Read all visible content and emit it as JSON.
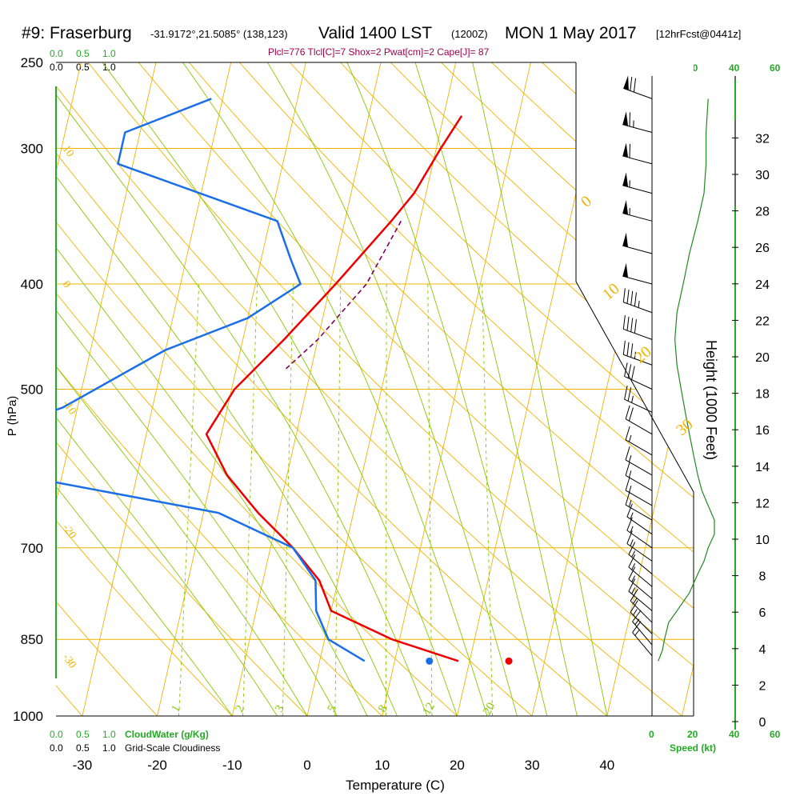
{
  "header": {
    "station": "#9: Fraserburg",
    "coords": "-31.9172°,21.5085° (138,123)",
    "valid": "Valid 1400 LST",
    "zulu": "(1200Z)",
    "date": "MON 1 May 2017",
    "fcst": "[12hrFcst@0441z]"
  },
  "indices": "Plcl=776 Tlcl[C]=7 Shox=2 Pwat[cm]=2 Cape[J]= 87",
  "colors": {
    "isotherm": "#f0b400",
    "dry_adiabat": "#f0b400",
    "moist_adiabat": "#88c800",
    "mixing_ratio": "#88c800",
    "temperature": "#ee0000",
    "dewpoint": "#1a6fe8",
    "parcel": "#800060",
    "green_axis": "#22aa22",
    "wind_speed": "#228822"
  },
  "cloud_scale": {
    "green_top": [
      "0.0",
      "0.5",
      "1.0"
    ],
    "black_top": [
      "0.0",
      "0.5",
      "1.0"
    ],
    "green_bottom": [
      "0.0",
      "0.5",
      "1.0"
    ],
    "green_bottom_label": "CloudWater (g/Kg)",
    "black_bottom": [
      "0.0",
      "0.5",
      "1.0"
    ],
    "black_bottom_label": "Grid-Scale Cloudiness"
  },
  "speed_axis": {
    "top_labels": [
      "0",
      "20",
      "40",
      "60"
    ],
    "bottom_labels": [
      "0",
      "20",
      "40",
      "60"
    ],
    "label": "Speed (kt)"
  },
  "chart_data": {
    "type": "line",
    "title": "#9: Fraserburg",
    "xlabel": "Temperature (C)",
    "ylabel": "P (hPa)",
    "y2label": "Height (1000 Feet)",
    "xlim": [
      -34,
      48
    ],
    "ylim": [
      1000,
      250
    ],
    "x_ticks": [
      -30,
      -20,
      -10,
      0,
      10,
      20,
      30,
      40
    ],
    "y_ticks": [
      250,
      300,
      400,
      500,
      700,
      850,
      1000
    ],
    "height_ticks": [
      0,
      2,
      4,
      6,
      8,
      10,
      12,
      14,
      16,
      18,
      20,
      22,
      24,
      26,
      28,
      30,
      32
    ],
    "isotherm_labels": [
      {
        "value": "0",
        "p": 400
      },
      {
        "value": "10",
        "p": 300
      },
      {
        "value": "-10",
        "p": 515
      },
      {
        "value": "-20",
        "p": 670
      },
      {
        "value": "-30",
        "p": 882
      }
    ],
    "dry_adiabat_labels": [
      {
        "value": "0",
        "p": 345
      },
      {
        "value": "10",
        "p": 420
      },
      {
        "value": "20",
        "p": 480
      },
      {
        "value": "30",
        "p": 560
      }
    ],
    "mixing_ratio_labels": [
      "1",
      "2",
      "3",
      "5",
      "8",
      "12",
      "20"
    ],
    "series": [
      {
        "name": "temperature",
        "points": [
          {
            "p": 280,
            "t": 2.4
          },
          {
            "p": 300,
            "t": 0.6
          },
          {
            "p": 330,
            "t": -1.6
          },
          {
            "p": 350,
            "t": -3.8
          },
          {
            "p": 400,
            "t": -9.3
          },
          {
            "p": 450,
            "t": -14.5
          },
          {
            "p": 500,
            "t": -19.6
          },
          {
            "p": 550,
            "t": -22.0
          },
          {
            "p": 600,
            "t": -18.0
          },
          {
            "p": 650,
            "t": -12.7
          },
          {
            "p": 700,
            "t": -7.0
          },
          {
            "p": 750,
            "t": -2.5
          },
          {
            "p": 800,
            "t": 0.0
          },
          {
            "p": 850,
            "t": 9.0
          },
          {
            "p": 890,
            "t": 18.5
          }
        ]
      },
      {
        "name": "dewpoint",
        "points": [
          {
            "p": 270,
            "t": -31.5
          },
          {
            "p": 290,
            "t": -42.0
          },
          {
            "p": 310,
            "t": -42.0
          },
          {
            "p": 350,
            "t": -19.0
          },
          {
            "p": 380,
            "t": -16.0
          },
          {
            "p": 400,
            "t": -14.0
          },
          {
            "p": 430,
            "t": -20.0
          },
          {
            "p": 460,
            "t": -30.0
          },
          {
            "p": 520,
            "t": -42.0
          },
          {
            "p": 560,
            "t": -55.0
          },
          {
            "p": 600,
            "t": -46.0
          },
          {
            "p": 650,
            "t": -18.0
          },
          {
            "p": 700,
            "t": -7.0
          },
          {
            "p": 750,
            "t": -3.0
          },
          {
            "p": 800,
            "t": -2.0
          },
          {
            "p": 850,
            "t": 0.5
          },
          {
            "p": 890,
            "t": 6.0
          }
        ]
      },
      {
        "name": "parcel",
        "points": [
          {
            "p": 350,
            "t": -2.5
          },
          {
            "p": 400,
            "t": -5.2
          },
          {
            "p": 450,
            "t": -10.0
          },
          {
            "p": 480,
            "t": -13.5
          }
        ]
      }
    ],
    "surface": {
      "p": 890,
      "t": 26.9,
      "td": 16.3
    },
    "wind_barbs": [
      {
        "p": 270,
        "dir": 290,
        "spd": 70
      },
      {
        "p": 290,
        "dir": 285,
        "spd": 65
      },
      {
        "p": 310,
        "dir": 285,
        "spd": 60
      },
      {
        "p": 330,
        "dir": 285,
        "spd": 55
      },
      {
        "p": 350,
        "dir": 285,
        "spd": 55
      },
      {
        "p": 375,
        "dir": 285,
        "spd": 50
      },
      {
        "p": 400,
        "dir": 285,
        "spd": 50
      },
      {
        "p": 425,
        "dir": 290,
        "spd": 45
      },
      {
        "p": 450,
        "dir": 290,
        "spd": 40
      },
      {
        "p": 475,
        "dir": 290,
        "spd": 35
      },
      {
        "p": 500,
        "dir": 295,
        "spd": 30
      },
      {
        "p": 525,
        "dir": 295,
        "spd": 25
      },
      {
        "p": 550,
        "dir": 300,
        "spd": 20
      },
      {
        "p": 575,
        "dir": 300,
        "spd": 15
      },
      {
        "p": 600,
        "dir": 300,
        "spd": 15
      },
      {
        "p": 620,
        "dir": 300,
        "spd": 15
      },
      {
        "p": 640,
        "dir": 300,
        "spd": 15
      },
      {
        "p": 660,
        "dir": 300,
        "spd": 15
      },
      {
        "p": 680,
        "dir": 305,
        "spd": 15
      },
      {
        "p": 700,
        "dir": 305,
        "spd": 15
      },
      {
        "p": 720,
        "dir": 305,
        "spd": 15
      },
      {
        "p": 740,
        "dir": 310,
        "spd": 15
      },
      {
        "p": 760,
        "dir": 310,
        "spd": 15
      },
      {
        "p": 780,
        "dir": 310,
        "spd": 15
      },
      {
        "p": 800,
        "dir": 310,
        "spd": 15
      },
      {
        "p": 820,
        "dir": 315,
        "spd": 15
      },
      {
        "p": 840,
        "dir": 315,
        "spd": 15
      },
      {
        "p": 860,
        "dir": 320,
        "spd": 15
      },
      {
        "p": 880,
        "dir": 320,
        "spd": 15
      }
    ],
    "wind_speed_profile": [
      {
        "p": 890,
        "spd": 3
      },
      {
        "p": 870,
        "spd": 5
      },
      {
        "p": 850,
        "spd": 6
      },
      {
        "p": 820,
        "spd": 8
      },
      {
        "p": 800,
        "spd": 12
      },
      {
        "p": 770,
        "spd": 18
      },
      {
        "p": 740,
        "spd": 22
      },
      {
        "p": 720,
        "spd": 25
      },
      {
        "p": 700,
        "spd": 27
      },
      {
        "p": 680,
        "spd": 30
      },
      {
        "p": 660,
        "spd": 30
      },
      {
        "p": 640,
        "spd": 27
      },
      {
        "p": 620,
        "spd": 24
      },
      {
        "p": 600,
        "spd": 22
      },
      {
        "p": 575,
        "spd": 20
      },
      {
        "p": 550,
        "spd": 18
      },
      {
        "p": 525,
        "spd": 16
      },
      {
        "p": 500,
        "spd": 14
      },
      {
        "p": 475,
        "spd": 12
      },
      {
        "p": 450,
        "spd": 11
      },
      {
        "p": 425,
        "spd": 12
      },
      {
        "p": 400,
        "spd": 15
      },
      {
        "p": 375,
        "spd": 18
      },
      {
        "p": 350,
        "spd": 22
      },
      {
        "p": 330,
        "spd": 25
      },
      {
        "p": 310,
        "spd": 26
      },
      {
        "p": 290,
        "spd": 26
      },
      {
        "p": 270,
        "spd": 27
      }
    ]
  }
}
